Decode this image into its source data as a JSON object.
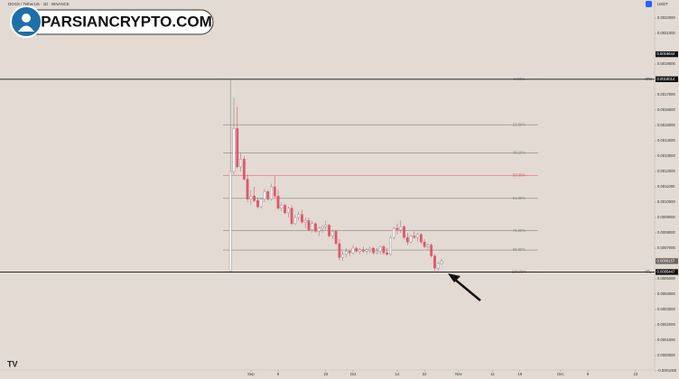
{
  "watermark": "PARSIANCRYPTO.COM",
  "chart_data": {
    "type": "candlestick",
    "title": "DOGS / TetherUS · 1D · BINANCE",
    "currency": "USDT",
    "up_color": "#f4f4f4",
    "down_color": "#e0566a",
    "x": [
      -6,
      -5,
      -4,
      -3,
      -2,
      -1,
      0,
      1,
      2,
      3,
      4,
      5,
      6,
      7,
      8,
      9,
      10,
      11,
      12,
      13,
      14,
      15,
      16,
      17,
      18,
      19,
      20,
      21,
      22,
      23,
      24,
      25,
      26,
      27,
      28,
      29,
      30,
      31,
      32,
      33,
      34,
      35,
      36,
      37,
      38,
      39,
      40,
      41,
      42,
      43,
      44,
      45,
      46,
      47,
      48,
      49,
      50,
      51,
      52,
      53,
      54,
      55,
      56
    ],
    "open": [
      0.00055,
      0.0012,
      0.00148,
      0.00123,
      0.00128,
      0.00115,
      0.00102,
      0.00104,
      0.00101,
      0.00097,
      0.00102,
      0.00107,
      0.00102,
      0.0011,
      0.00104,
      0.00096,
      0.00098,
      0.00093,
      0.00096,
      0.00086,
      0.0009,
      0.00092,
      0.00087,
      0.00088,
      0.00082,
      0.00086,
      0.00081,
      0.00083,
      0.00084,
      0.00085,
      0.00078,
      0.00081,
      0.00073,
      0.00064,
      0.00066,
      0.00068,
      0.00067,
      0.0007,
      0.00068,
      0.00069,
      0.00068,
      0.00069,
      0.0007,
      0.00067,
      0.00068,
      0.00071,
      0.00067,
      0.00066,
      0.00077,
      0.00083,
      0.00082,
      0.00084,
      0.00077,
      0.00074,
      0.00078,
      0.00077,
      0.00079,
      0.00074,
      0.00071,
      0.00072,
      0.00065,
      0.00057,
      0.0006
    ],
    "high": [
      0.0018014,
      0.00168,
      0.00162,
      0.00132,
      0.0013,
      0.00118,
      0.00108,
      0.0011,
      0.00103,
      0.00103,
      0.00109,
      0.00108,
      0.00112,
      0.00117,
      0.00108,
      0.001,
      0.00099,
      0.00097,
      0.00098,
      0.00092,
      0.00094,
      0.00095,
      0.0009,
      0.0009,
      0.00088,
      0.00087,
      0.00084,
      0.00085,
      0.00088,
      0.00086,
      0.00082,
      0.00082,
      0.00076,
      0.00068,
      0.0007,
      0.00069,
      0.00072,
      0.00071,
      0.0007,
      0.00071,
      0.0007,
      0.00071,
      0.00071,
      0.0007,
      0.00072,
      0.00072,
      0.0007,
      0.00078,
      0.00084,
      0.00086,
      0.00088,
      0.00085,
      0.0008,
      0.00079,
      0.00081,
      0.0008,
      0.0008,
      0.00076,
      0.00073,
      0.00073,
      0.00066,
      0.00061,
      0.00063
    ],
    "low": [
      0.00055,
      0.00118,
      0.00122,
      0.0012,
      0.00114,
      0.001,
      0.00098,
      0.001,
      0.00096,
      0.00096,
      0.001,
      0.00101,
      0.00101,
      0.00103,
      0.00095,
      0.00094,
      0.00092,
      0.0009,
      0.00085,
      0.00085,
      0.00088,
      0.00086,
      0.00083,
      0.00081,
      0.0008,
      0.0008,
      0.00078,
      0.0008,
      0.00082,
      0.00077,
      0.00076,
      0.00072,
      0.00062,
      0.00062,
      0.00064,
      0.00065,
      0.00066,
      0.00067,
      0.00066,
      0.00067,
      0.00066,
      0.00067,
      0.00066,
      0.00066,
      0.00066,
      0.00066,
      0.00065,
      0.00065,
      0.00076,
      0.00079,
      0.0008,
      0.00076,
      0.00072,
      0.00073,
      0.00076,
      0.00074,
      0.00073,
      0.0007,
      0.00069,
      0.00064,
      0.0005447,
      0.00055,
      0.00059
    ],
    "close": [
      0.0012,
      0.00148,
      0.00123,
      0.00128,
      0.00115,
      0.00102,
      0.00104,
      0.00101,
      0.00097,
      0.00102,
      0.00107,
      0.00102,
      0.0011,
      0.00104,
      0.00096,
      0.00098,
      0.00093,
      0.00096,
      0.00086,
      0.0009,
      0.00092,
      0.00087,
      0.00088,
      0.00082,
      0.00086,
      0.00081,
      0.00083,
      0.00084,
      0.00085,
      0.00078,
      0.00081,
      0.00073,
      0.00064,
      0.00066,
      0.00068,
      0.00067,
      0.0007,
      0.00068,
      0.00069,
      0.00068,
      0.00069,
      0.0007,
      0.00067,
      0.00068,
      0.00071,
      0.00067,
      0.00066,
      0.00077,
      0.00083,
      0.00082,
      0.00084,
      0.00077,
      0.00074,
      0.00078,
      0.00077,
      0.00079,
      0.00074,
      0.00071,
      0.00072,
      0.00065,
      0.00057,
      0.0006,
      0.0006157
    ],
    "xlim": [
      -73.7,
      118.6
    ],
    "xticks": [
      {
        "value": 0,
        "label": "Sep"
      },
      {
        "value": 8,
        "label": "9"
      },
      {
        "value": 22,
        "label": "23"
      },
      {
        "value": 30,
        "label": "Oct"
      },
      {
        "value": 43,
        "label": "14"
      },
      {
        "value": 51,
        "label": "22"
      },
      {
        "value": 61,
        "label": "Nov"
      },
      {
        "value": 71,
        "label": "11"
      },
      {
        "value": 79,
        "label": "19"
      },
      {
        "value": 91,
        "label": "Dec"
      },
      {
        "value": 99,
        "label": "9"
      },
      {
        "value": 113,
        "label": "23"
      }
    ],
    "ylim": [
      -9.4e-05,
      0.002318
    ],
    "yticks": [
      {
        "value": 0.0022,
        "label": "0.0022000"
      },
      {
        "value": 0.0021,
        "label": "0.0021000"
      },
      {
        "value": 0.0019,
        "label": "0.0019000"
      },
      {
        "value": 0.0017,
        "label": "0.0017000"
      },
      {
        "value": 0.0016,
        "label": "0.0016000"
      },
      {
        "value": 0.0015,
        "label": "0.0015000"
      },
      {
        "value": 0.0014,
        "label": "0.0014000"
      },
      {
        "value": 0.0013,
        "label": "0.0013000"
      },
      {
        "value": 0.0012,
        "label": "0.0012000"
      },
      {
        "value": 0.0011,
        "label": "0.0011000"
      },
      {
        "value": 0.001,
        "label": "0.0010000"
      },
      {
        "value": 0.0009,
        "label": "0.0009000"
      },
      {
        "value": 0.0008,
        "label": "0.0008000"
      },
      {
        "value": 0.0007,
        "label": "0.0007000"
      },
      {
        "value": 0.0005,
        "label": "0.0005000"
      },
      {
        "value": 0.0004,
        "label": "0.0004000"
      },
      {
        "value": 0.0003,
        "label": "0.0003000"
      },
      {
        "value": 0.0002,
        "label": "0.0002000"
      },
      {
        "value": 0.0001,
        "label": "0.0001000"
      },
      {
        "value": 0,
        "label": "0.0000000"
      },
      {
        "value": -0.0001,
        "label": "-0.0001000"
      }
    ],
    "marker_price": 0.0019644,
    "fib": {
      "high": 0.0018014,
      "low": 0.0005447,
      "high_label": "ATH",
      "low_label": "ATL",
      "color": "#8a8580",
      "key_color": "#e0566a",
      "key_level": 50,
      "levels": [
        {
          "value": 0,
          "label": "0.00%"
        },
        {
          "value": 23.6,
          "label": "23.60%"
        },
        {
          "value": 38.2,
          "label": "38.20%"
        },
        {
          "value": 50,
          "label": "50.00%"
        },
        {
          "value": 61.8,
          "label": "61.80%"
        },
        {
          "value": 78.6,
          "label": "78.60%"
        },
        {
          "value": 88.6,
          "label": "88.60%"
        },
        {
          "value": 100,
          "label": "100.00%"
        }
      ]
    }
  }
}
